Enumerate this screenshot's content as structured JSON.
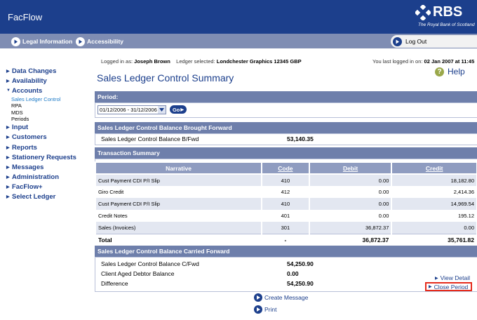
{
  "app": {
    "title": "FacFlow",
    "logo_text": "RBS",
    "logo_sub": "The Royal Bank of Scotland"
  },
  "topnav": {
    "legal": "Legal Information",
    "accessibility": "Accessibility",
    "logout": "Log Out"
  },
  "sidebar": {
    "items": [
      {
        "label": "Data Changes"
      },
      {
        "label": "Availability"
      },
      {
        "label": "Accounts"
      },
      {
        "label": "Input"
      },
      {
        "label": "Customers"
      },
      {
        "label": "Reports"
      },
      {
        "label": "Stationery Requests"
      },
      {
        "label": "Messages"
      },
      {
        "label": "Administration"
      },
      {
        "label": "FacFlow+"
      },
      {
        "label": "Select Ledger"
      }
    ],
    "accounts_sub": [
      "Sales Ledger Control",
      "RPA",
      "MDS",
      "Periods"
    ]
  },
  "info": {
    "logged_in_label": "Logged in as:",
    "user": "Joseph Brown",
    "ledger_label": "Ledger selected:",
    "ledger": "Londchester Graphics  12345  GBP",
    "last_login_label": "You last logged in on:",
    "last_login": "02 Jan 2007 at 11:45"
  },
  "page": {
    "title": "Sales Ledger Control Summary",
    "help": "Help"
  },
  "period": {
    "label": "Period:",
    "selected": "01/12/2006 - 31/12/2006",
    "go": "Go"
  },
  "brought_forward": {
    "heading": "Sales Ledger Control Balance Brought Forward",
    "label": "Sales Ledger Control Balance B/Fwd",
    "value": "53,140.35"
  },
  "transactions": {
    "heading": "Transaction Summary",
    "columns": [
      "Narrative",
      "Code",
      "Debit",
      "Credit"
    ],
    "rows": [
      [
        "Cust Payment CDI P/I Slip",
        "410",
        "0.00",
        "18,182.80"
      ],
      [
        "Giro Credit",
        "412",
        "0.00",
        "2,414.36"
      ],
      [
        "Cust Payment CDI P/I Slip",
        "410",
        "0.00",
        "14,969.54"
      ],
      [
        "Credit Notes",
        "401",
        "0.00",
        "195.12"
      ],
      [
        "Sales (Invoices)",
        "301",
        "36,872.37",
        "0.00"
      ]
    ],
    "total": [
      "Total",
      "-",
      "36,872.37",
      "35,761.82"
    ]
  },
  "carried_forward": {
    "heading": "Sales Ledger Control Balance Carried Forward",
    "rows": [
      {
        "label": "Sales Ledger Control Balance C/Fwd",
        "value": "54,250.90"
      },
      {
        "label": "Client Aged Debtor Balance",
        "value": "0.00"
      },
      {
        "label": "Difference",
        "value": "54,250.90"
      }
    ],
    "view_detail": "View Detail",
    "close_period": "Close Period"
  },
  "actions": {
    "create_message": "Create Message",
    "print": "Print"
  },
  "colors": {
    "brand": "#1c3f8c",
    "nav": "#7f8db3",
    "panel_head": "#6e7fab",
    "highlight": "#e52b1c"
  }
}
